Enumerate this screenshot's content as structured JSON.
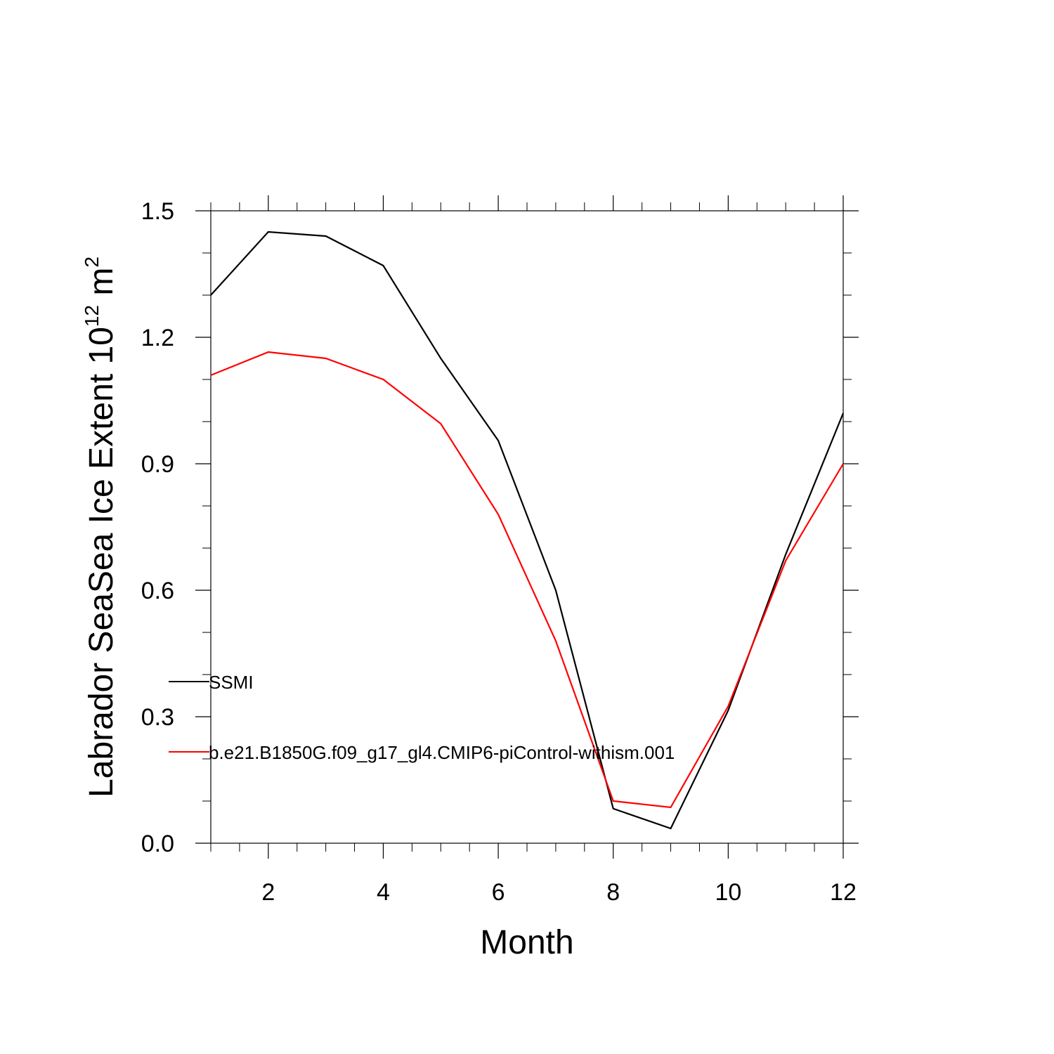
{
  "chart_data": {
    "type": "line",
    "title": "",
    "xlabel": "Month",
    "ylabel": "Labrador SeaSea Ice Extent 10",
    "ylabel_superscript": "12",
    "ylabel_unit": "m",
    "ylabel_unit_superscript": "2",
    "xlim": [
      1,
      12
    ],
    "ylim": [
      0,
      1.5
    ],
    "x_ticks": [
      2,
      4,
      6,
      8,
      10,
      12
    ],
    "y_ticks": [
      "0.0",
      "0.3",
      "0.6",
      "0.9",
      "1.2",
      "1.5"
    ],
    "grid": false,
    "legend_position": "inside-left",
    "x": [
      1,
      2,
      3,
      4,
      5,
      6,
      7,
      8,
      9,
      10,
      11,
      12
    ],
    "series": [
      {
        "name": "SSMI",
        "color": "#000000",
        "values": [
          1.3,
          1.45,
          1.44,
          1.37,
          1.15,
          0.955,
          0.6,
          0.082,
          0.035,
          0.315,
          0.685,
          1.02
        ]
      },
      {
        "name": "b.e21.B1850G.f09_g17_gl4.CMIP6-piControl-withism.001",
        "color": "#ff0000",
        "values": [
          1.11,
          1.165,
          1.15,
          1.1,
          0.995,
          0.78,
          0.48,
          0.1,
          0.085,
          0.325,
          0.67,
          0.9
        ]
      }
    ]
  }
}
